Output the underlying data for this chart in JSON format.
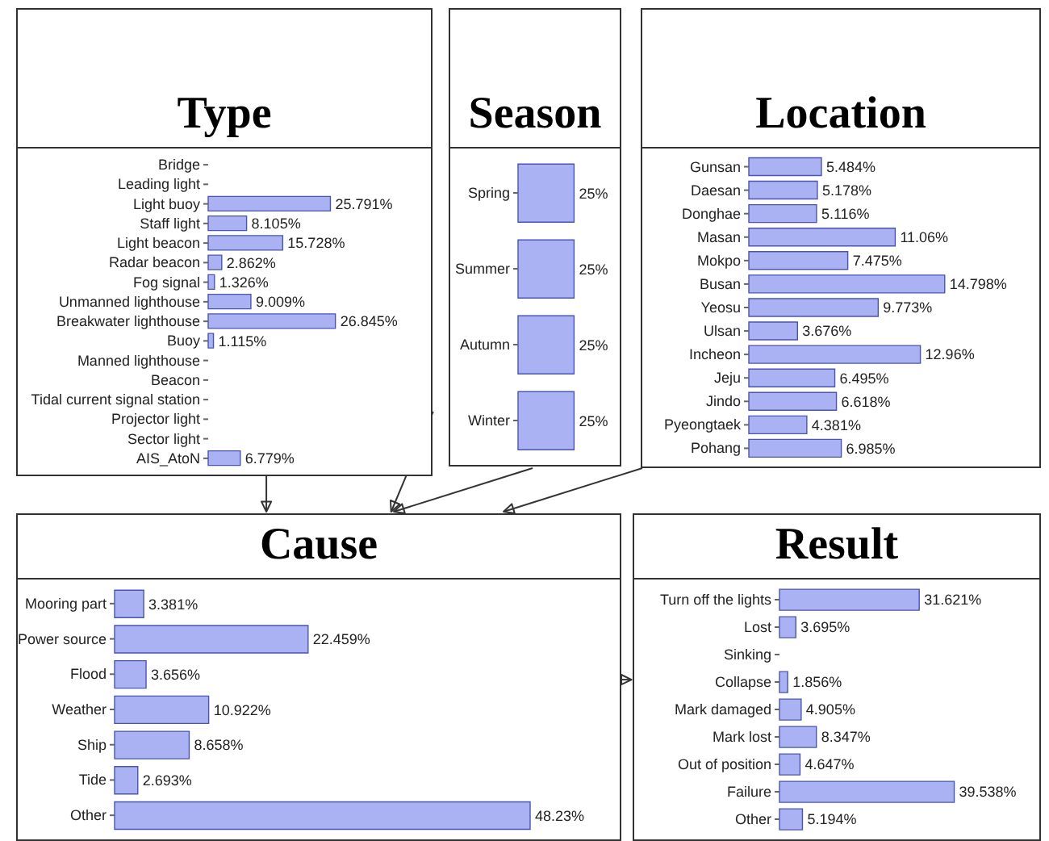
{
  "chart_data": [
    {
      "type": "bar",
      "orientation": "horizontal",
      "title": "Type",
      "color": "#aab2f4",
      "grid": false,
      "legend": false,
      "categories": [
        "Bridge",
        "Leading light",
        "Light buoy",
        "Staff light",
        "Light beacon",
        "Radar beacon",
        "Fog signal",
        "Unmanned lighthouse",
        "Breakwater lighthouse",
        "Buoy",
        "Manned lighthouse",
        "Beacon",
        "Tidal current signal station",
        "Projector light",
        "Sector light",
        "AIS_AtoN"
      ],
      "values": [
        0,
        0,
        25.791,
        8.105,
        15.728,
        2.862,
        1.326,
        9.009,
        26.845,
        1.115,
        0,
        0,
        0,
        0,
        0,
        6.779
      ],
      "value_labels": [
        null,
        null,
        "25.791%",
        "8.105%",
        "15.728%",
        "2.862%",
        "1.326%",
        "9.009%",
        "26.845%",
        "1.115%",
        null,
        null,
        null,
        null,
        null,
        "6.779%"
      ]
    },
    {
      "type": "bar",
      "orientation": "horizontal",
      "title": "Season",
      "color": "#aab2f4",
      "grid": false,
      "legend": false,
      "categories": [
        "Spring",
        "Summer",
        "Autumn",
        "Winter"
      ],
      "values": [
        25,
        25,
        25,
        25
      ],
      "value_labels": [
        "25%",
        "25%",
        "25%",
        "25%"
      ]
    },
    {
      "type": "bar",
      "orientation": "horizontal",
      "title": "Location",
      "color": "#aab2f4",
      "grid": false,
      "legend": false,
      "categories": [
        "Gunsan",
        "Daesan",
        "Donghae",
        "Masan",
        "Mokpo",
        "Busan",
        "Yeosu",
        "Ulsan",
        "Incheon",
        "Jeju",
        "Jindo",
        "Pyeongtaek",
        "Pohang"
      ],
      "values": [
        5.484,
        5.178,
        5.116,
        11.06,
        7.475,
        14.798,
        9.773,
        3.676,
        12.96,
        6.495,
        6.618,
        4.381,
        6.985
      ],
      "value_labels": [
        "5.484%",
        "5.178%",
        "5.116%",
        "11.06%",
        "7.475%",
        "14.798%",
        "9.773%",
        "3.676%",
        "12.96%",
        "6.495%",
        "6.618%",
        "4.381%",
        "6.985%"
      ]
    },
    {
      "type": "bar",
      "orientation": "horizontal",
      "title": "Cause",
      "color": "#aab2f4",
      "grid": false,
      "legend": false,
      "categories": [
        "Mooring part",
        "Power source",
        "Flood",
        "Weather",
        "Ship",
        "Tide",
        "Other"
      ],
      "values": [
        3.381,
        22.459,
        3.656,
        10.922,
        8.658,
        2.693,
        48.23
      ],
      "value_labels": [
        "3.381%",
        "22.459%",
        "3.656%",
        "10.922%",
        "8.658%",
        "2.693%",
        "48.23%"
      ]
    },
    {
      "type": "bar",
      "orientation": "horizontal",
      "title": "Result",
      "color": "#aab2f4",
      "grid": false,
      "legend": false,
      "categories": [
        "Turn off the lights",
        "Lost",
        "Sinking",
        "Collapse",
        "Mark damaged",
        "Mark lost",
        "Out of position",
        "Failure",
        "Other"
      ],
      "values": [
        31.621,
        3.695,
        0,
        1.856,
        4.905,
        8.347,
        4.647,
        39.538,
        5.194
      ],
      "value_labels": [
        "31.621%",
        "3.695%",
        null,
        "1.856%",
        "4.905%",
        "8.347%",
        "4.647%",
        "39.538%",
        "5.194%"
      ]
    }
  ]
}
